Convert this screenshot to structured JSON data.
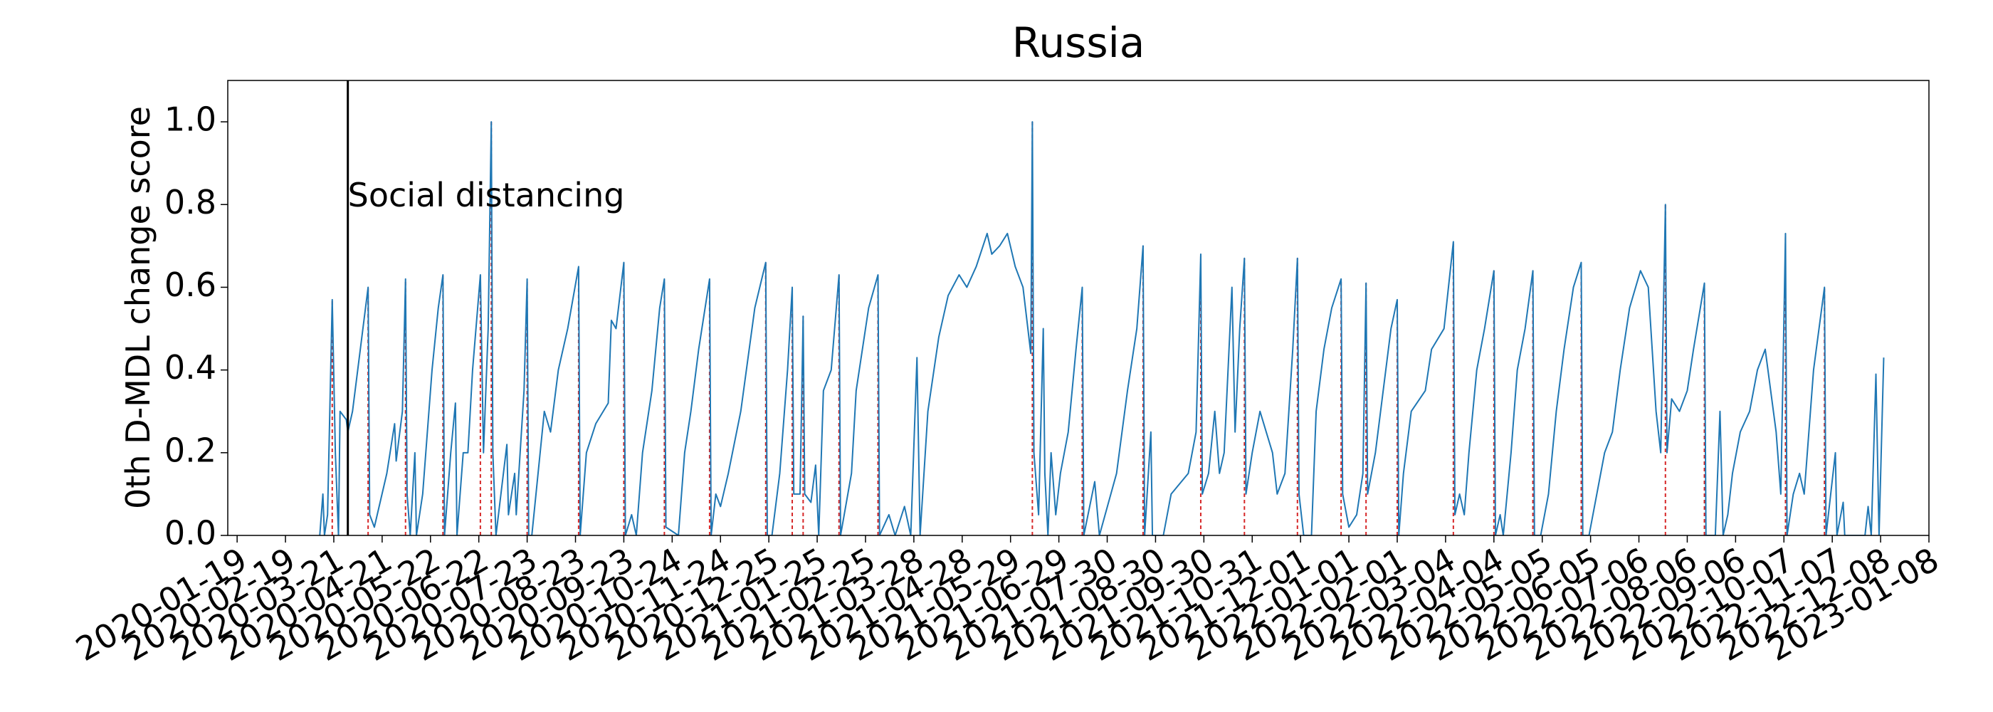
{
  "chart_data": {
    "type": "line",
    "title": "Russia",
    "y_label": "0th D-MDL change score",
    "xlim": [
      "2020-01-13",
      "2023-01-08"
    ],
    "ylim": [
      0,
      1.1
    ],
    "xticks": [
      "2020-01-19",
      "2020-02-19",
      "2020-03-21",
      "2020-04-21",
      "2020-05-22",
      "2020-06-22",
      "2020-07-23",
      "2020-08-23",
      "2020-09-23",
      "2020-10-24",
      "2020-11-24",
      "2020-12-25",
      "2021-01-25",
      "2021-02-25",
      "2021-03-28",
      "2021-04-28",
      "2021-05-29",
      "2021-06-29",
      "2021-07-30",
      "2021-08-30",
      "2021-09-30",
      "2021-10-31",
      "2021-12-01",
      "2022-01-01",
      "2022-02-01",
      "2022-03-04",
      "2022-04-04",
      "2022-05-05",
      "2022-06-05",
      "2022-07-06",
      "2022-08-06",
      "2022-09-06",
      "2022-10-07",
      "2022-11-07",
      "2022-12-08",
      "2023-01-08"
    ],
    "yticks": [
      {
        "value": 0,
        "label": "0.0"
      },
      0.2,
      0.4,
      0.6,
      0.8,
      {
        "value": 1,
        "label": "1.0"
      }
    ],
    "color": "#1f77b4",
    "change_point_color": "#d62728",
    "annotation": {
      "text": "Social distancing",
      "x": "2020-03-30"
    },
    "x": [
      "2020-03-12",
      "2020-03-14",
      "2020-03-15",
      "2020-03-17",
      "2020-03-20",
      "2020-03-22",
      "2020-03-24",
      "2020-03-25",
      "2020-03-29",
      "2020-03-30",
      "2020-04-02",
      "2020-04-07",
      "2020-04-12",
      "2020-04-13",
      "2020-04-16",
      "2020-04-24",
      "2020-04-29",
      "2020-04-30",
      "2020-05-04",
      "2020-05-06",
      "2020-05-07",
      "2020-05-09",
      "2020-05-12",
      "2020-05-13",
      "2020-05-17",
      "2020-05-23",
      "2020-05-27",
      "2020-05-30",
      "2020-05-31",
      "2020-06-04",
      "2020-06-07",
      "2020-06-08",
      "2020-06-12",
      "2020-06-15",
      "2020-06-18",
      "2020-06-23",
      "2020-06-25",
      "2020-06-28",
      "2020-06-30",
      "2020-07-01",
      "2020-07-03",
      "2020-07-10",
      "2020-07-11",
      "2020-07-15",
      "2020-07-16",
      "2020-07-21",
      "2020-07-23",
      "2020-07-24",
      "2020-07-26",
      "2020-08-03",
      "2020-08-07",
      "2020-08-12",
      "2020-08-18",
      "2020-08-25",
      "2020-08-26",
      "2020-08-30",
      "2020-09-05",
      "2020-09-13",
      "2020-09-15",
      "2020-09-18",
      "2020-09-23",
      "2020-09-24",
      "2020-09-28",
      "2020-10-01",
      "2020-10-05",
      "2020-10-11",
      "2020-10-16",
      "2020-10-19",
      "2020-10-20",
      "2020-10-28",
      "2020-11-01",
      "2020-11-05",
      "2020-11-10",
      "2020-11-17",
      "2020-11-18",
      "2020-11-21",
      "2020-11-24",
      "2020-11-29",
      "2020-12-07",
      "2020-12-16",
      "2020-12-23",
      "2020-12-24",
      "2020-12-27",
      "2021-01-01",
      "2021-01-06",
      "2021-01-09",
      "2021-01-10",
      "2021-01-14",
      "2021-01-16",
      "2021-01-17",
      "2021-01-21",
      "2021-01-24",
      "2021-01-26",
      "2021-01-29",
      "2021-02-03",
      "2021-02-08",
      "2021-02-09",
      "2021-02-16",
      "2021-02-19",
      "2021-02-27",
      "2021-03-05",
      "2021-03-06",
      "2021-03-12",
      "2021-03-16",
      "2021-03-22",
      "2021-03-26",
      "2021-03-30",
      "2021-04-01",
      "2021-04-06",
      "2021-04-13",
      "2021-04-19",
      "2021-04-26",
      "2021-05-01",
      "2021-05-07",
      "2021-05-14",
      "2021-05-17",
      "2021-05-22",
      "2021-05-27",
      "2021-06-01",
      "2021-06-06",
      "2021-06-11",
      "2021-06-12",
      "2021-06-13",
      "2021-06-16",
      "2021-06-19",
      "2021-06-20",
      "2021-06-22",
      "2021-06-24",
      "2021-06-27",
      "2021-06-30",
      "2021-07-05",
      "2021-07-10",
      "2021-07-14",
      "2021-07-15",
      "2021-07-22",
      "2021-07-25",
      "2021-08-05",
      "2021-08-12",
      "2021-08-18",
      "2021-08-22",
      "2021-08-23",
      "2021-08-27",
      "2021-08-28",
      "2021-09-04",
      "2021-09-09",
      "2021-09-20",
      "2021-09-25",
      "2021-09-28",
      "2021-09-29",
      "2021-10-03",
      "2021-10-07",
      "2021-10-10",
      "2021-10-13",
      "2021-10-18",
      "2021-10-20",
      "2021-10-23",
      "2021-10-26",
      "2021-10-27",
      "2021-10-31",
      "2021-11-05",
      "2021-11-13",
      "2021-11-16",
      "2021-11-21",
      "2021-11-26",
      "2021-11-29",
      "2021-11-30",
      "2021-12-03",
      "2021-12-08",
      "2021-12-11",
      "2021-12-16",
      "2021-12-21",
      "2021-12-27",
      "2021-12-28",
      "2022-01-01",
      "2022-01-06",
      "2022-01-10",
      "2022-01-12",
      "2022-01-13",
      "2022-01-18",
      "2022-01-23",
      "2022-01-28",
      "2022-02-01",
      "2022-02-02",
      "2022-02-05",
      "2022-02-10",
      "2022-02-19",
      "2022-02-23",
      "2022-03-03",
      "2022-03-09",
      "2022-03-10",
      "2022-03-13",
      "2022-03-16",
      "2022-03-19",
      "2022-03-24",
      "2022-03-29",
      "2022-04-04",
      "2022-04-05",
      "2022-04-08",
      "2022-04-10",
      "2022-04-15",
      "2022-04-19",
      "2022-04-24",
      "2022-04-29",
      "2022-04-30",
      "2022-05-04",
      "2022-05-09",
      "2022-05-14",
      "2022-05-19",
      "2022-05-25",
      "2022-05-30",
      "2022-05-31",
      "2022-06-04",
      "2022-06-09",
      "2022-06-14",
      "2022-06-19",
      "2022-06-24",
      "2022-06-30",
      "2022-07-07",
      "2022-07-12",
      "2022-07-17",
      "2022-07-20",
      "2022-07-23",
      "2022-07-24",
      "2022-07-27",
      "2022-08-01",
      "2022-08-06",
      "2022-08-10",
      "2022-08-17",
      "2022-08-18",
      "2022-08-24",
      "2022-08-27",
      "2022-08-29",
      "2022-09-01",
      "2022-09-04",
      "2022-09-09",
      "2022-09-15",
      "2022-09-20",
      "2022-09-25",
      "2022-10-02",
      "2022-10-05",
      "2022-10-08",
      "2022-10-09",
      "2022-10-13",
      "2022-10-17",
      "2022-10-20",
      "2022-10-23",
      "2022-10-26",
      "2022-11-02",
      "2022-11-03",
      "2022-11-09",
      "2022-11-10",
      "2022-11-14",
      "2022-11-15",
      "2022-11-28",
      "2022-11-30",
      "2022-12-02",
      "2022-12-05",
      "2022-12-07",
      "2022-12-10"
    ],
    "values": [
      0,
      0.1,
      0,
      0.05,
      0.57,
      0.2,
      0,
      0.3,
      0.28,
      0.25,
      0.3,
      0.45,
      0.6,
      0.05,
      0.02,
      0.15,
      0.27,
      0.18,
      0.3,
      0.62,
      0.1,
      0,
      0.2,
      0,
      0.1,
      0.4,
      0.55,
      0.63,
      0,
      0.2,
      0.32,
      0,
      0.2,
      0.2,
      0.4,
      0.63,
      0.2,
      0.5,
      1.0,
      0.2,
      0,
      0.22,
      0.05,
      0.15,
      0.05,
      0.35,
      0.62,
      0,
      0,
      0.3,
      0.25,
      0.4,
      0.5,
      0.65,
      0,
      0.2,
      0.27,
      0.32,
      0.52,
      0.5,
      0.66,
      0,
      0.05,
      0,
      0.2,
      0.35,
      0.55,
      0.62,
      0.02,
      0,
      0.2,
      0.3,
      0.45,
      0.62,
      0,
      0.1,
      0.07,
      0.15,
      0.3,
      0.55,
      0.66,
      0,
      0,
      0.15,
      0.4,
      0.6,
      0.1,
      0.1,
      0.53,
      0.1,
      0.08,
      0.17,
      0,
      0.35,
      0.4,
      0.63,
      0,
      0.15,
      0.35,
      0.55,
      0.63,
      0,
      0.05,
      0,
      0.07,
      0,
      0.43,
      0,
      0.3,
      0.48,
      0.58,
      0.63,
      0.6,
      0.65,
      0.73,
      0.68,
      0.7,
      0.73,
      0.65,
      0.6,
      0.44,
      1.0,
      0.2,
      0.05,
      0.5,
      0.15,
      0,
      0.2,
      0.05,
      0.15,
      0.25,
      0.45,
      0.6,
      0,
      0.13,
      0,
      0.15,
      0.35,
      0.5,
      0.7,
      0,
      0.25,
      0,
      0,
      0.1,
      0.15,
      0.25,
      0.68,
      0.1,
      0.15,
      0.3,
      0.15,
      0.2,
      0.6,
      0.25,
      0.5,
      0.67,
      0.1,
      0.2,
      0.3,
      0.2,
      0.1,
      0.15,
      0.45,
      0.67,
      0.1,
      0,
      0,
      0.3,
      0.45,
      0.55,
      0.62,
      0.1,
      0.02,
      0.05,
      0.15,
      0.61,
      0.1,
      0.2,
      0.35,
      0.5,
      0.57,
      0,
      0.15,
      0.3,
      0.35,
      0.45,
      0.5,
      0.71,
      0.05,
      0.1,
      0.05,
      0.2,
      0.4,
      0.5,
      0.64,
      0,
      0.05,
      0,
      0.2,
      0.4,
      0.5,
      0.64,
      0,
      0,
      0.1,
      0.3,
      0.45,
      0.6,
      0.66,
      0,
      0,
      0.1,
      0.2,
      0.25,
      0.4,
      0.55,
      0.64,
      0.6,
      0.3,
      0.2,
      0.8,
      0.2,
      0.33,
      0.3,
      0.35,
      0.45,
      0.61,
      0,
      0,
      0.3,
      0,
      0.05,
      0.15,
      0.25,
      0.3,
      0.4,
      0.45,
      0.25,
      0.1,
      0.73,
      0,
      0.1,
      0.15,
      0.1,
      0.25,
      0.4,
      0.6,
      0,
      0.2,
      0,
      0.08,
      0,
      0,
      0.07,
      0,
      0.39,
      0,
      0.43
    ],
    "change_points": [
      "2020-03-20",
      "2020-04-12",
      "2020-05-06",
      "2020-05-30",
      "2020-06-23",
      "2020-06-30",
      "2020-07-23",
      "2020-08-25",
      "2020-09-23",
      "2020-10-19",
      "2020-11-17",
      "2020-12-23",
      "2021-01-09",
      "2021-01-16",
      "2021-02-08",
      "2021-03-05",
      "2021-06-12",
      "2021-07-14",
      "2021-08-22",
      "2021-09-28",
      "2021-10-26",
      "2021-11-29",
      "2021-12-27",
      "2022-01-12",
      "2022-02-01",
      "2022-03-09",
      "2022-04-04",
      "2022-04-29",
      "2022-05-30",
      "2022-07-23",
      "2022-08-17",
      "2022-10-08",
      "2022-11-02"
    ]
  }
}
